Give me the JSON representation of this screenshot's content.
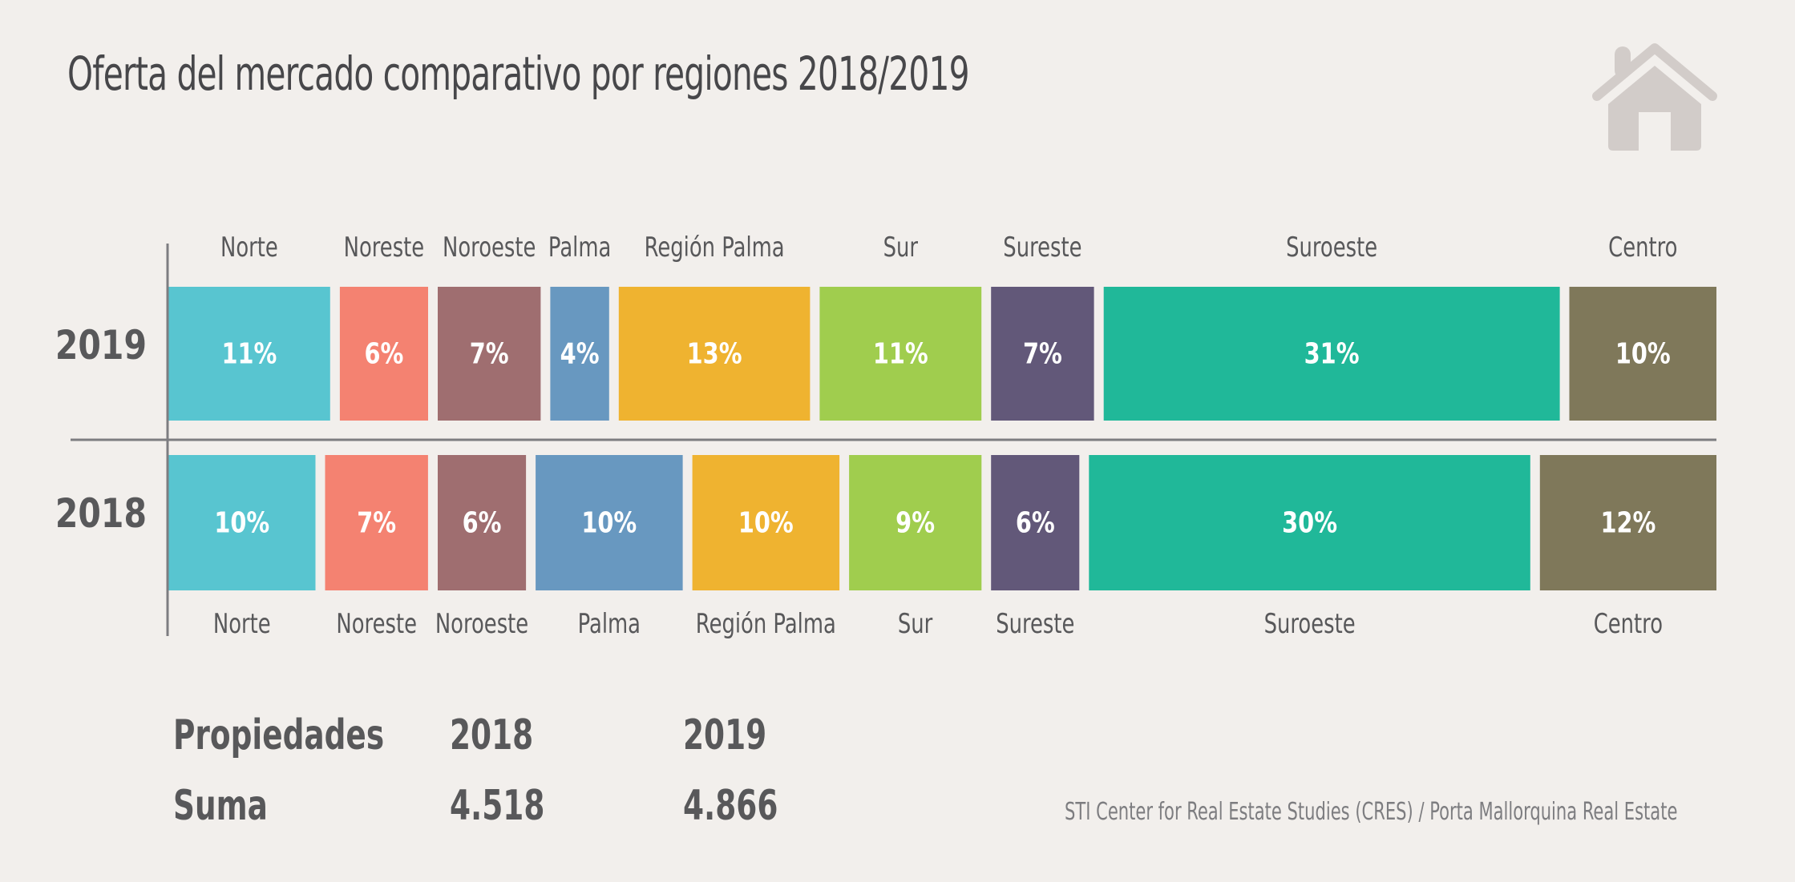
{
  "title": "Oferta del mercado comparativo por regiones 2018/2019",
  "icons": {
    "header": "home-icon"
  },
  "chart_data": {
    "type": "bar",
    "orientation": "horizontal-stacked-100",
    "title": "Oferta del mercado comparativo por regiones 2018/2019",
    "categories": [
      "Norte",
      "Noreste",
      "Noroeste",
      "Palma",
      "Región Palma",
      "Sur",
      "Sureste",
      "Suroeste",
      "Centro"
    ],
    "colors": [
      "#58c5d0",
      "#f48271",
      "#9f6e70",
      "#6898c0",
      "#efb330",
      "#a0cd4e",
      "#625879",
      "#20b899",
      "#7f785a"
    ],
    "series": [
      {
        "name": "2019",
        "values": [
          11,
          6,
          7,
          4,
          13,
          11,
          7,
          31,
          10
        ],
        "labels": [
          "11%",
          "6%",
          "7%",
          "4%",
          "13%",
          "11%",
          "7%",
          "31%",
          "10%"
        ]
      },
      {
        "name": "2018",
        "values": [
          10,
          7,
          6,
          10,
          10,
          9,
          6,
          30,
          12
        ],
        "labels": [
          "10%",
          "7%",
          "6%",
          "10%",
          "10%",
          "9%",
          "6%",
          "30%",
          "12%"
        ]
      }
    ],
    "unit": "%",
    "legend": "category labels above (2019) and below (2018) each bar",
    "grid": false
  },
  "summary": {
    "header": [
      "Propiedades",
      "2018",
      "2019"
    ],
    "row": [
      "Suma",
      "4.518",
      "4.866"
    ]
  },
  "source": "STI Center for Real Estate Studies (CRES) / Porta Mallorquina Real Estate"
}
